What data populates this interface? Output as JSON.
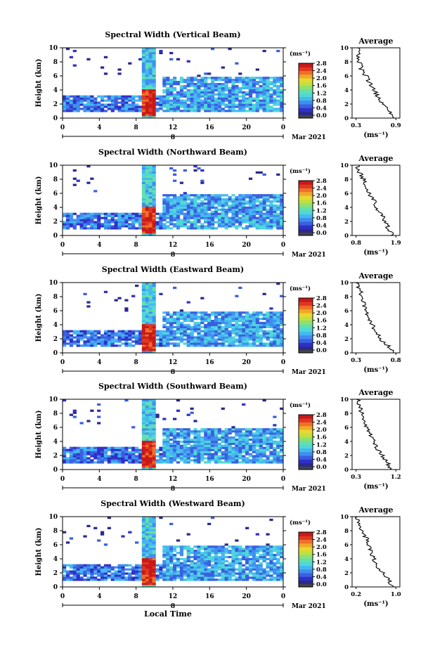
{
  "x_axis_title": "Local Time",
  "colors": {
    "colormap": [
      "#2a2a8c",
      "#3030c8",
      "#3a5fe0",
      "#3f8ef0",
      "#45b8f0",
      "#4fd8d8",
      "#63e0a8",
      "#8fe070",
      "#c0e040",
      "#e8d830",
      "#f0a828",
      "#f07028",
      "#e03820",
      "#c81818"
    ],
    "hatch_bottom": "#444444"
  },
  "panels": [
    {
      "title": "Spectral Width (Vertical Beam)",
      "avg_title": "Average",
      "ylabel": "Height (km)",
      "unit": "(ms⁻¹)",
      "date_label": "Mar 2021",
      "day_marker": "8",
      "avg_xticks": [
        "0.3",
        "0.9"
      ],
      "avg_xlabel": "(ms⁻¹)"
    },
    {
      "title": "Spectral Width (Northward Beam)",
      "avg_title": "Average",
      "ylabel": "Height (km)",
      "unit": "(ms⁻¹)",
      "date_label": "Mar 2021",
      "day_marker": "8",
      "avg_xticks": [
        "0.8",
        "1.9"
      ],
      "avg_xlabel": "(ms⁻¹)"
    },
    {
      "title": "Spectral Width (Eastward Beam)",
      "avg_title": "Average",
      "ylabel": "Height (km)",
      "unit": "(ms⁻¹)",
      "date_label": "Mar 2021",
      "day_marker": "8",
      "avg_xticks": [
        "0.3",
        "0.8"
      ],
      "avg_xlabel": "(ms⁻¹)"
    },
    {
      "title": "Spectral Width (Southward Beam)",
      "avg_title": "Average",
      "ylabel": "Height (km)",
      "unit": "(ms⁻¹)",
      "date_label": "Mar 2021",
      "day_marker": "8",
      "avg_xticks": [
        "0.3",
        "1.2"
      ],
      "avg_xlabel": "(ms⁻¹)"
    },
    {
      "title": "Spectral Width (Westward Beam)",
      "avg_title": "Average",
      "ylabel": "Height (km)",
      "unit": "(ms⁻¹)",
      "date_label": "Mar 2021",
      "day_marker": "8",
      "avg_xticks": [
        "0.2",
        "1.0"
      ],
      "avg_xlabel": "(ms⁻¹)"
    }
  ],
  "chart_data": {
    "type": "heatmap",
    "x_label": "Local Time",
    "x_ticks": [
      "0",
      "4",
      "8",
      "12",
      "16",
      "20",
      "0"
    ],
    "x_range_hours": [
      0,
      24
    ],
    "y_ticks": [
      "0",
      "2",
      "4",
      "6",
      "8",
      "10"
    ],
    "y_range_km": [
      0,
      10
    ],
    "colorbar_ticks": [
      "0.0",
      "0.4",
      "0.8",
      "1.2",
      "1.6",
      "2.0",
      "2.4",
      "2.8"
    ],
    "colorbar_range": [
      0,
      2.8
    ],
    "heatmap_features": [
      {
        "name": "boundary-layer band",
        "hours": [
          0,
          24
        ],
        "height_km": [
          0.8,
          3.2
        ],
        "typical_value": 0.6
      },
      {
        "name": "high-width column",
        "hours": [
          8.5,
          10
        ],
        "height_km": [
          0.4,
          4.2
        ],
        "typical_value": 2.6
      },
      {
        "name": "upper column",
        "hours": [
          8.5,
          10
        ],
        "height_km": [
          4.2,
          10
        ],
        "typical_value": 1.0
      },
      {
        "name": "afternoon elevated layer",
        "hours": [
          11,
          24
        ],
        "height_km": [
          1,
          6
        ],
        "typical_value": 0.8
      }
    ],
    "averages": [
      {
        "beam": "Vertical",
        "x_range": [
          0.3,
          0.9
        ],
        "heights": [
          0,
          1,
          2,
          3,
          4,
          5,
          6,
          7,
          8,
          9,
          10
        ],
        "values": [
          0.88,
          0.8,
          0.72,
          0.62,
          0.58,
          0.5,
          0.45,
          0.38,
          0.35,
          0.33,
          0.32
        ]
      },
      {
        "beam": "Northward",
        "x_range": [
          0.8,
          1.9
        ],
        "heights": [
          0,
          1,
          2,
          3,
          4,
          5,
          6,
          7,
          8,
          9,
          10
        ],
        "values": [
          1.8,
          1.7,
          1.6,
          1.5,
          1.35,
          1.3,
          1.15,
          1.05,
          1.0,
          0.9,
          0.82
        ]
      },
      {
        "beam": "Eastward",
        "x_range": [
          0.3,
          0.8
        ],
        "heights": [
          0,
          1,
          2,
          3,
          4,
          5,
          6,
          7,
          8,
          9,
          10
        ],
        "values": [
          0.78,
          0.7,
          0.6,
          0.55,
          0.5,
          0.45,
          0.42,
          0.4,
          0.38,
          0.34,
          0.3
        ]
      },
      {
        "beam": "Southward",
        "x_range": [
          0.3,
          1.2
        ],
        "heights": [
          0,
          1,
          2,
          3,
          4,
          5,
          6,
          7,
          8,
          9,
          10
        ],
        "values": [
          1.1,
          1.0,
          0.9,
          0.75,
          0.7,
          0.62,
          0.55,
          0.48,
          0.42,
          0.38,
          0.34
        ]
      },
      {
        "beam": "Westward",
        "x_range": [
          0.2,
          1.0
        ],
        "heights": [
          0,
          1,
          2,
          3,
          4,
          5,
          6,
          7,
          8,
          9,
          10
        ],
        "values": [
          0.92,
          0.85,
          0.75,
          0.62,
          0.55,
          0.5,
          0.45,
          0.4,
          0.32,
          0.26,
          0.22
        ]
      }
    ]
  }
}
